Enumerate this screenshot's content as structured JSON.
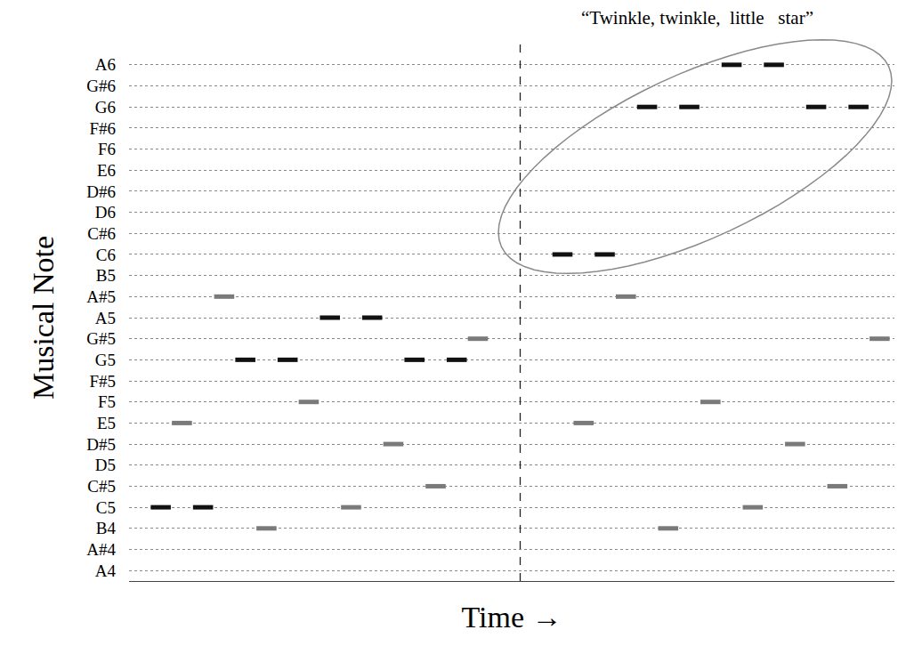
{
  "chart_data": {
    "type": "piano_roll",
    "x_label": "Time →",
    "y_label": "Musical Note",
    "lyrics": "“Twinkle, twinkle,  little   star”",
    "categories": [
      "A4",
      "A#4",
      "B4",
      "C5",
      "C#5",
      "D5",
      "D#5",
      "E5",
      "F5",
      "F#5",
      "G5",
      "G#5",
      "A5",
      "A#5",
      "B5",
      "C6",
      "C#6",
      "D6",
      "D#6",
      "E6",
      "F6",
      "F#6",
      "G6",
      "G#6",
      "A6"
    ],
    "xlim": [
      -1.5,
      34.7
    ],
    "tick_labels": "y",
    "grid": true,
    "divider": 17,
    "series": [
      {
        "color": "#111111",
        "duration": 0.95,
        "x": [
          0,
          2,
          4,
          6,
          8,
          10,
          12,
          14,
          19,
          21,
          23,
          25,
          27,
          29,
          31,
          33
        ],
        "values": [
          "C5",
          "C5",
          "G5",
          "G5",
          "A5",
          "A5",
          "G5",
          "G5",
          "C6",
          "C6",
          "G6",
          "G6",
          "A6",
          "A6",
          "G6",
          "G6"
        ]
      },
      {
        "color": "#7a7a7a",
        "duration": 0.95,
        "x": [
          1,
          3,
          5,
          7,
          9,
          11,
          13,
          15,
          20,
          22,
          24,
          26,
          28,
          30,
          32,
          34
        ],
        "values": [
          "E5",
          "A#5",
          "B4",
          "F5",
          "C5",
          "D#5",
          "C#5",
          "G#5",
          "E5",
          "A#5",
          "B4",
          "F5",
          "C5",
          "D#5",
          "C#5",
          "G#5"
        ]
      }
    ]
  }
}
